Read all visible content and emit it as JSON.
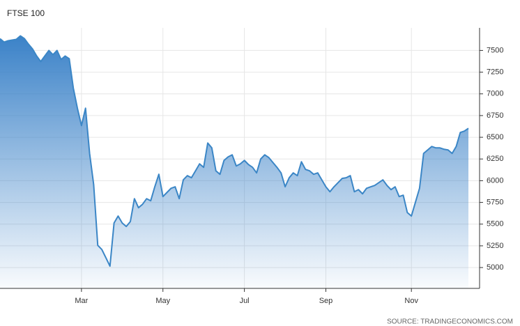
{
  "chart_data": {
    "type": "area",
    "title": "FTSE 100",
    "source": "SOURCE: TRADINGECONOMICS.COM",
    "color": "#3b86c6",
    "grid": true,
    "ylim": [
      4760,
      7760
    ],
    "yticks": [
      5000,
      5250,
      5500,
      5750,
      6000,
      6250,
      6500,
      6750,
      7000,
      7250,
      7500
    ],
    "categories": [
      null,
      null,
      null,
      null,
      null,
      null,
      null,
      null,
      null,
      null,
      null,
      null,
      null,
      null,
      null,
      null,
      null,
      null,
      null,
      null,
      "Mar",
      null,
      null,
      null,
      null,
      null,
      null,
      null,
      null,
      null,
      null,
      null,
      null,
      null,
      null,
      null,
      null,
      null,
      null,
      null,
      "May",
      null,
      null,
      null,
      null,
      null,
      null,
      null,
      null,
      null,
      null,
      null,
      null,
      null,
      null,
      null,
      null,
      null,
      null,
      null,
      "Jul",
      null,
      null,
      null,
      null,
      null,
      null,
      null,
      null,
      null,
      null,
      null,
      null,
      null,
      null,
      null,
      null,
      null,
      null,
      null,
      "Sep",
      null,
      null,
      null,
      null,
      null,
      null,
      null,
      null,
      null,
      null,
      null,
      null,
      null,
      null,
      null,
      null,
      null,
      null,
      null,
      null,
      "Nov",
      null,
      null,
      null,
      null,
      null,
      null,
      null,
      null,
      null,
      null,
      null,
      null,
      null,
      null
    ],
    "values": [
      7635,
      7596,
      7612,
      7620,
      7628,
      7668,
      7636,
      7572,
      7516,
      7436,
      7372,
      7436,
      7500,
      7452,
      7500,
      7396,
      7436,
      7404,
      7067,
      6835,
      6635,
      6835,
      6314,
      5954,
      5256,
      5208,
      5112,
      5016,
      5513,
      5593,
      5513,
      5473,
      5529,
      5793,
      5689,
      5729,
      5793,
      5769,
      5930,
      6074,
      5817,
      5865,
      5913,
      5930,
      5793,
      6010,
      6058,
      6034,
      6114,
      6194,
      6154,
      6434,
      6378,
      6114,
      6074,
      6234,
      6274,
      6298,
      6170,
      6194,
      6234,
      6186,
      6154,
      6090,
      6250,
      6298,
      6266,
      6210,
      6154,
      6090,
      5930,
      6034,
      6090,
      6058,
      6218,
      6130,
      6114,
      6074,
      6090,
      6010,
      5930,
      5873,
      5930,
      5978,
      6026,
      6034,
      6058,
      5873,
      5897,
      5849,
      5913,
      5930,
      5946,
      5978,
      6010,
      5946,
      5897,
      5930,
      5817,
      5833,
      5633,
      5593,
      5753,
      5913,
      6314,
      6354,
      6394,
      6378,
      6378,
      6362,
      6354,
      6314,
      6394,
      6555,
      6571,
      6603
    ]
  }
}
